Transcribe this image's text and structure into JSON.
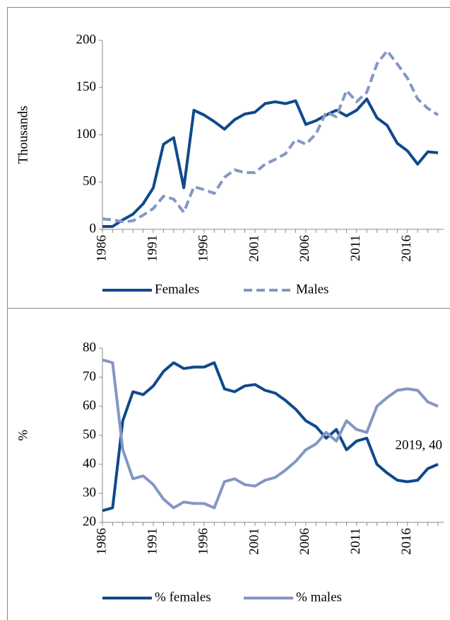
{
  "chart_data": [
    {
      "type": "line",
      "ylabel": "Thousands",
      "x": [
        1986,
        1987,
        1988,
        1989,
        1990,
        1991,
        1992,
        1993,
        1994,
        1995,
        1996,
        1997,
        1998,
        1999,
        2000,
        2001,
        2002,
        2003,
        2004,
        2005,
        2006,
        2007,
        2008,
        2009,
        2010,
        2011,
        2012,
        2013,
        2014,
        2015,
        2016,
        2017,
        2018,
        2019
      ],
      "xlim": [
        1986,
        2019
      ],
      "xticks": [
        1986,
        1991,
        1996,
        2001,
        2006,
        2011,
        2016
      ],
      "ylim": [
        0,
        200
      ],
      "yticks": [
        0,
        50,
        100,
        150,
        200
      ],
      "legend": "bottom",
      "series": [
        {
          "name": "Females",
          "color": "#0f4a8a",
          "dash": false,
          "values": [
            3,
            3,
            10,
            16,
            27,
            44,
            90,
            97,
            44,
            126,
            121,
            114,
            106,
            116,
            122,
            124,
            133,
            135,
            133,
            136,
            111,
            115,
            121,
            126,
            120,
            126,
            138,
            118,
            110,
            91,
            83,
            69,
            82,
            81
          ]
        },
        {
          "name": "Males",
          "color": "#8496c4",
          "dash": true,
          "values": [
            11,
            10,
            8,
            9,
            15,
            22,
            35,
            32,
            18,
            45,
            42,
            38,
            55,
            63,
            60,
            60,
            69,
            74,
            80,
            95,
            90,
            101,
            124,
            119,
            147,
            135,
            145,
            175,
            189,
            175,
            160,
            138,
            128,
            121
          ]
        }
      ]
    },
    {
      "type": "line",
      "ylabel": "%",
      "annotation": "2019, 40",
      "x": [
        1986,
        1987,
        1988,
        1989,
        1990,
        1991,
        1992,
        1993,
        1994,
        1995,
        1996,
        1997,
        1998,
        1999,
        2000,
        2001,
        2002,
        2003,
        2004,
        2005,
        2006,
        2007,
        2008,
        2009,
        2010,
        2011,
        2012,
        2013,
        2014,
        2015,
        2016,
        2017,
        2018,
        2019
      ],
      "xlim": [
        1986,
        2019
      ],
      "xticks": [
        1986,
        1991,
        1996,
        2001,
        2006,
        2011,
        2016
      ],
      "ylim": [
        20,
        80
      ],
      "yticks": [
        20,
        30,
        40,
        50,
        60,
        70,
        80
      ],
      "legend": "bottom",
      "series": [
        {
          "name": "% females",
          "color": "#0f4a8a",
          "dash": false,
          "values": [
            24,
            25,
            55,
            65,
            64,
            67,
            72,
            75,
            73,
            73.5,
            73.5,
            75,
            66,
            65,
            67,
            67.5,
            65.5,
            64.5,
            62,
            59,
            55,
            53,
            49,
            52,
            45,
            48,
            49,
            40,
            37,
            34.5,
            34,
            34.5,
            38.5,
            40
          ]
        },
        {
          "name": "% males",
          "color": "#8496c4",
          "dash": false,
          "values": [
            76,
            75,
            45,
            35,
            36,
            33,
            28,
            25,
            27,
            26.5,
            26.5,
            25,
            34,
            35,
            33,
            32.5,
            34.5,
            35.5,
            38,
            41,
            45,
            47,
            51,
            48,
            55,
            52,
            51,
            60,
            63,
            65.5,
            66,
            65.5,
            61.5,
            60
          ]
        }
      ]
    }
  ]
}
